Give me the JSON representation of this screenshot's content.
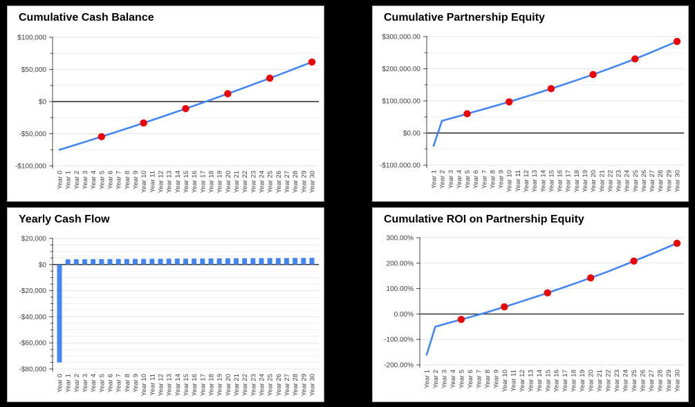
{
  "page": {
    "background": "#000000"
  },
  "chart_data": [
    {
      "name": "cumulative-cash-balance",
      "type": "line",
      "title": "Cumulative Cash Balance",
      "legend": "none",
      "grid": true,
      "line_color": "#4285f4",
      "marker_color": "#ee0000",
      "ylim": [
        -100000,
        100000
      ],
      "y_minor_step": 25000,
      "y_ticks": [
        {
          "v": 100000,
          "label": "$100,000"
        },
        {
          "v": 50000,
          "label": "$50,000"
        },
        {
          "v": 0,
          "label": "$0"
        },
        {
          "v": -50000,
          "label": "-$50,000"
        },
        {
          "v": -100000,
          "label": "-$100,000"
        }
      ],
      "categories": [
        "Year 0",
        "Year 1",
        "Year 2",
        "Year 3",
        "Year 4",
        "Year 5",
        "Year 6",
        "Year 7",
        "Year 8",
        "Year 9",
        "Year 10",
        "Year 11",
        "Year 12",
        "Year 13",
        "Year 14",
        "Year 15",
        "Year 16",
        "Year 17",
        "Year 18",
        "Year 19",
        "Year 20",
        "Year 21",
        "Year 22",
        "Year 23",
        "Year 24",
        "Year 25",
        "Year 26",
        "Year 27",
        "Year 28",
        "Year 29",
        "Year 30"
      ],
      "values": [
        -75000,
        -71000,
        -66962,
        -62886,
        -58772,
        -54620,
        -50430,
        -46202,
        -41936,
        -37632,
        -33290,
        -28910,
        -24492,
        -20036,
        -15542,
        -11010,
        -6440,
        -1832,
        2814,
        7498,
        12220,
        16980,
        21778,
        26614,
        31488,
        36400,
        41350,
        46338,
        51364,
        56428,
        61530
      ],
      "marker_indices": [
        5,
        10,
        15,
        20,
        25,
        30
      ]
    },
    {
      "name": "cumulative-partnership-equity",
      "type": "line",
      "title": "Cumulative Partnership Equity",
      "legend": "none",
      "grid": true,
      "line_color": "#4285f4",
      "marker_color": "#ee0000",
      "ylim": [
        -100000,
        300000
      ],
      "y_minor_step": 50000,
      "y_ticks": [
        {
          "v": 300000,
          "label": "$300,000.00"
        },
        {
          "v": 200000,
          "label": "$200,000.00"
        },
        {
          "v": 100000,
          "label": "$100,000.00"
        },
        {
          "v": 0,
          "label": "$0.00"
        },
        {
          "v": -100000,
          "label": "-$100,000.00"
        }
      ],
      "categories": [
        "Year 1",
        "Year 2",
        "Year 3",
        "Year 4",
        "Year 5",
        "Year 6",
        "Year 7",
        "Year 8",
        "Year 9",
        "Year 10",
        "Year 11",
        "Year 12",
        "Year 13",
        "Year 14",
        "Year 15",
        "Year 16",
        "Year 17",
        "Year 18",
        "Year 19",
        "Year 20",
        "Year 21",
        "Year 22",
        "Year 23",
        "Year 24",
        "Year 25",
        "Year 26",
        "Year 27",
        "Year 28",
        "Year 29",
        "Year 30"
      ],
      "values": [
        -40000,
        38000,
        45200,
        52500,
        60000,
        67200,
        74500,
        81900,
        89400,
        97000,
        105000,
        113100,
        121300,
        129600,
        138000,
        146600,
        155300,
        164100,
        173000,
        182000,
        191500,
        201100,
        210800,
        220600,
        230600,
        241300,
        252100,
        263000,
        274000,
        285000
      ],
      "marker_indices": [
        4,
        9,
        14,
        19,
        24,
        29
      ]
    },
    {
      "name": "yearly-cash-flow",
      "type": "bar",
      "title": "Yearly Cash Flow",
      "legend": "none",
      "grid": true,
      "bar_color": "#4285f4",
      "ylim": [
        -80000,
        20000
      ],
      "y_minor_step": 5000,
      "y_ticks": [
        {
          "v": 20000,
          "label": "$20,000"
        },
        {
          "v": 0,
          "label": "$0"
        },
        {
          "v": -20000,
          "label": "-$20,000"
        },
        {
          "v": -40000,
          "label": "-$40,000"
        },
        {
          "v": -60000,
          "label": "-$60,000"
        },
        {
          "v": -80000,
          "label": "-$80,000"
        }
      ],
      "categories": [
        "Year 0",
        "Year 1",
        "Year 2",
        "Year 3",
        "Year 4",
        "Year 5",
        "Year 6",
        "Year 7",
        "Year 8",
        "Year 9",
        "Year 10",
        "Year 11",
        "Year 12",
        "Year 13",
        "Year 14",
        "Year 15",
        "Year 16",
        "Year 17",
        "Year 18",
        "Year 19",
        "Year 20",
        "Year 21",
        "Year 22",
        "Year 23",
        "Year 24",
        "Year 25",
        "Year 26",
        "Year 27",
        "Year 28",
        "Year 29",
        "Year 30"
      ],
      "values": [
        -75000,
        4000,
        4038,
        4076,
        4114,
        4152,
        4190,
        4228,
        4266,
        4304,
        4342,
        4380,
        4418,
        4456,
        4494,
        4532,
        4570,
        4608,
        4646,
        4684,
        4722,
        4760,
        4798,
        4836,
        4874,
        4912,
        4950,
        4988,
        5026,
        5064,
        5102
      ],
      "marker_indices": []
    },
    {
      "name": "cumulative-roi-on-partnership-equity",
      "type": "line",
      "title": "Cumulative ROI on Partnership Equity",
      "legend": "none",
      "grid": true,
      "line_color": "#4285f4",
      "marker_color": "#ee0000",
      "ylim": [
        -200,
        300
      ],
      "y_minor_step": null,
      "y_ticks": [
        {
          "v": 300,
          "label": "300.00%"
        },
        {
          "v": 200,
          "label": "200.00%"
        },
        {
          "v": 100,
          "label": "100.00%"
        },
        {
          "v": 0,
          "label": "0.00%"
        },
        {
          "v": -100,
          "label": "-100.00%"
        },
        {
          "v": -200,
          "label": "-200.00%"
        }
      ],
      "categories": [
        "Year 1",
        "Year 2",
        "Year 3",
        "Year 4",
        "Year 5",
        "Year 6",
        "Year 7",
        "Year 8",
        "Year 9",
        "Year 10",
        "Year 11",
        "Year 12",
        "Year 13",
        "Year 14",
        "Year 15",
        "Year 16",
        "Year 17",
        "Year 18",
        "Year 19",
        "Year 20",
        "Year 21",
        "Year 22",
        "Year 23",
        "Year 24",
        "Year 25",
        "Year 26",
        "Year 27",
        "Year 28",
        "Year 29",
        "Year 30"
      ],
      "values": [
        -160,
        -50,
        -40.5,
        -31,
        -21.5,
        -12.5,
        -3,
        7,
        17.5,
        28,
        38.5,
        49.5,
        60.5,
        71.5,
        83,
        94.5,
        106,
        118,
        130,
        142,
        154.5,
        167,
        180.5,
        194,
        208,
        221.5,
        235.5,
        249.5,
        264,
        278
      ],
      "marker_indices": [
        4,
        9,
        14,
        19,
        24,
        29
      ]
    }
  ]
}
